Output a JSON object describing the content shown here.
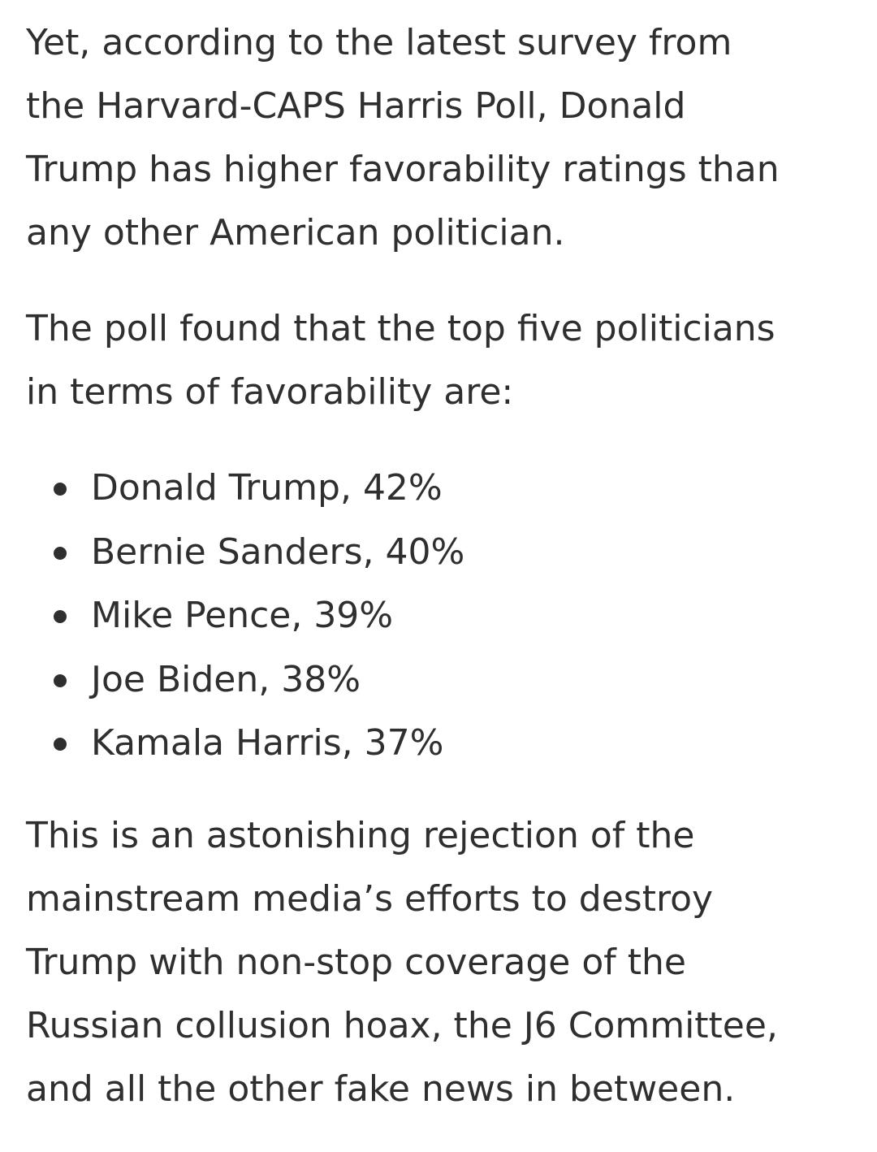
{
  "article": {
    "paragraph1": [
      "Yet, according to the latest survey from",
      "the Harvard-CAPS Harris Poll, Donald",
      "Trump has higher favorability ratings than",
      "any other American politician."
    ],
    "paragraph2": [
      "The poll found that the top five politicians",
      "in terms of favorability are:"
    ],
    "list": [
      "Donald Trump, 42%",
      "Bernie Sanders, 40%",
      "Mike Pence, 39%",
      "Joe Biden, 38%",
      "Kamala Harris, 37%"
    ],
    "paragraph3": [
      "This is an astonishing rejection of the",
      "mainstream media’s efforts to destroy",
      "Trump with non-stop coverage of the",
      "Russian collusion hoax, the J6 Committee,",
      "and all the other fake news in between."
    ]
  }
}
